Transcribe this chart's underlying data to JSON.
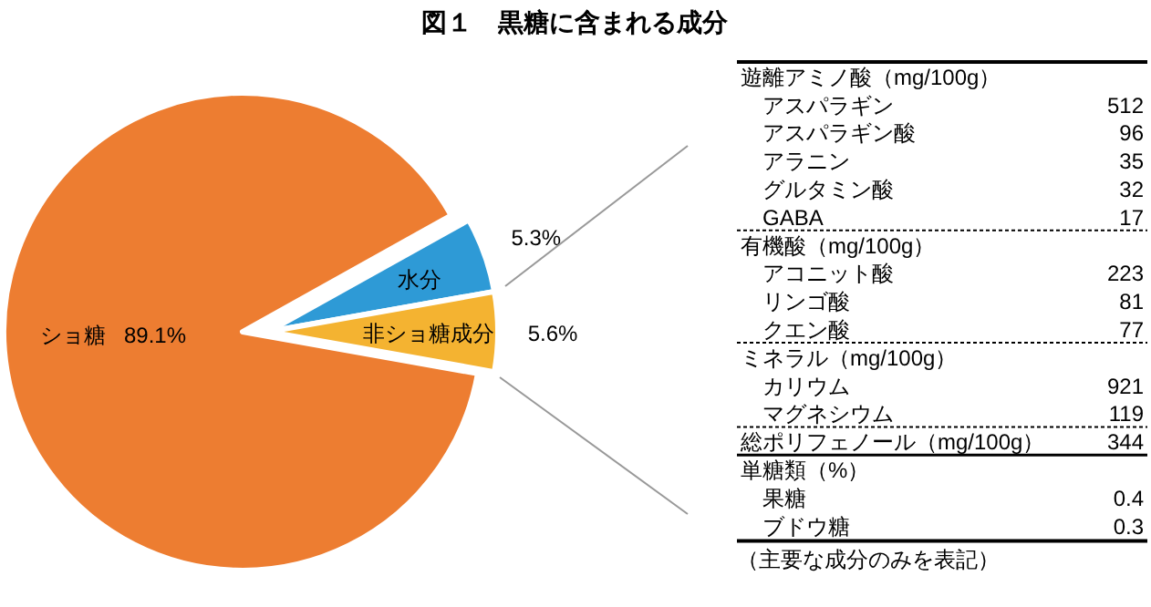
{
  "chart_data": [
    {
      "type": "pie",
      "title": "図１　黒糖に含まれる成分",
      "categories": [
        "ショ糖",
        "水分",
        "非ショ糖成分"
      ],
      "values": [
        89.1,
        5.3,
        5.6
      ],
      "colors": [
        "#ed7d31",
        "#2e9ad6",
        "#f4b331"
      ],
      "value_labels": [
        "89.1%",
        "5.3%",
        "5.6%"
      ]
    },
    {
      "type": "other",
      "categories": [
        "遊離アミノ酸（mg/100g）",
        "アスパラギン",
        "アスパラギン酸",
        "アラニン",
        "グルタミン酸",
        "GABA",
        "有機酸（mg/100g）",
        "アコニット酸",
        "リンゴ酸",
        "クエン酸",
        "ミネラル（mg/100g）",
        "カリウム",
        "マグネシウム",
        "総ポリフェノール（mg/100g）",
        "単糖類（%）",
        "果糖",
        "ブドウ糖"
      ],
      "value_labels": [
        null,
        "512",
        "96",
        "35",
        "32",
        "17",
        null,
        "223",
        "81",
        "77",
        null,
        "921",
        "119",
        "344",
        null,
        "0.4",
        "0.3"
      ],
      "annotations": [
        "（主要な成分のみを表記）"
      ]
    }
  ]
}
